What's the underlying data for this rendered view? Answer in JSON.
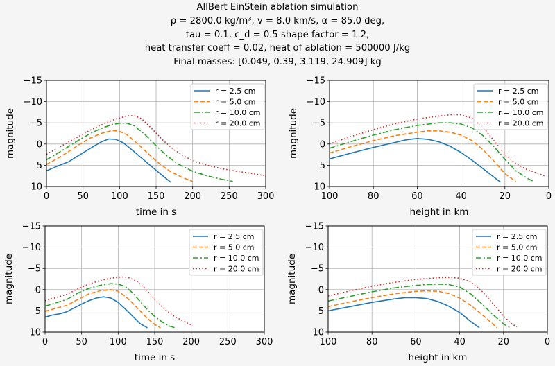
{
  "title": {
    "line1": "AllBert EinStein ablation simulation",
    "line2": "ρ = 2800.0 kg/m³, v = 8.0 km/s, α = 85.0 deg,",
    "line3": "tau = 0.1, c_d = 0.5 shape factor = 1.2,",
    "line4": "heat transfer coeff = 0.02, heat of ablation = 500000 J/kg",
    "line5": "Final masses: [0.049, 0.39, 3.119, 24.909] kg"
  },
  "series_style": [
    {
      "name": "r = 2.5 cm",
      "color": "#1f77b4",
      "dash": ""
    },
    {
      "name": "r = 5.0 cm",
      "color": "#ff7f0e",
      "dash": "6,3"
    },
    {
      "name": "r = 10.0 cm",
      "color": "#2ca02c",
      "dash": "8,3,2,3"
    },
    {
      "name": "r = 20.0 cm",
      "color": "#d62728",
      "dash": "1.5,3"
    }
  ],
  "chart_data": [
    {
      "type": "line",
      "xlabel": "time in s",
      "ylabel": "magnitude",
      "xlim": [
        0,
        300
      ],
      "ylim": [
        10,
        -15
      ],
      "xticks": [
        0,
        50,
        100,
        150,
        200,
        250,
        300
      ],
      "yticks": [
        10,
        5,
        0,
        -5,
        -10,
        -15
      ],
      "grid": true,
      "legend": "top-right",
      "series": [
        {
          "name": "r = 2.5 cm",
          "x": [
            0,
            15,
            30,
            45,
            60,
            75,
            85,
            95,
            105,
            120,
            135,
            150,
            160,
            170
          ],
          "y": [
            6.3,
            5.2,
            4.2,
            2.6,
            1.0,
            -0.5,
            -1.2,
            -1.1,
            -0.3,
            1.8,
            4.0,
            6.2,
            7.6,
            9.0
          ]
        },
        {
          "name": "r = 5.0 cm",
          "x": [
            0,
            15,
            30,
            45,
            60,
            75,
            90,
            100,
            110,
            125,
            140,
            155,
            170,
            185,
            200
          ],
          "y": [
            4.8,
            3.4,
            1.8,
            0.1,
            -1.4,
            -2.5,
            -3.2,
            -3.0,
            -2.2,
            0.0,
            2.4,
            4.7,
            6.5,
            7.8,
            8.8
          ]
        },
        {
          "name": "r = 10.0 cm",
          "x": [
            0,
            15,
            30,
            45,
            60,
            75,
            90,
            100,
            110,
            120,
            135,
            150,
            165,
            180,
            200,
            220,
            240,
            255
          ],
          "y": [
            3.7,
            2.2,
            0.6,
            -1.0,
            -2.5,
            -3.7,
            -4.6,
            -4.9,
            -4.9,
            -4.3,
            -2.2,
            0.4,
            2.8,
            4.7,
            6.4,
            7.5,
            8.3,
            8.8
          ]
        },
        {
          "name": "r = 20.0 cm",
          "x": [
            0,
            20,
            40,
            60,
            80,
            95,
            110,
            120,
            130,
            145,
            160,
            175,
            190,
            205,
            220,
            240,
            260,
            280,
            300
          ],
          "y": [
            2.4,
            0.5,
            -1.4,
            -3.3,
            -4.9,
            -5.9,
            -6.6,
            -6.7,
            -6.0,
            -3.5,
            -0.8,
            1.4,
            3.0,
            4.2,
            5.0,
            5.8,
            6.4,
            6.9,
            7.5
          ]
        }
      ]
    },
    {
      "type": "line",
      "xlabel": "height in km",
      "ylabel": "magnitude",
      "xlim": [
        100,
        0
      ],
      "ylim": [
        10,
        -15
      ],
      "xticks": [
        100,
        80,
        60,
        40,
        20,
        0
      ],
      "yticks": [
        10,
        5,
        0,
        -5,
        -10,
        -15
      ],
      "grid": true,
      "legend": "top-right",
      "series": [
        {
          "name": "r = 2.5 cm",
          "x": [
            100,
            90,
            80,
            70,
            65,
            60,
            55,
            50,
            45,
            40,
            35,
            30,
            25,
            22
          ],
          "y": [
            3.5,
            2.1,
            0.8,
            -0.4,
            -1.0,
            -1.3,
            -1.1,
            -0.5,
            0.5,
            2.0,
            3.8,
            5.8,
            7.8,
            9.0
          ]
        },
        {
          "name": "r = 5.0 cm",
          "x": [
            100,
            90,
            80,
            70,
            60,
            55,
            50,
            45,
            40,
            35,
            30,
            25,
            20,
            15
          ],
          "y": [
            2.1,
            0.6,
            -0.8,
            -2.0,
            -2.8,
            -3.1,
            -3.1,
            -2.8,
            -2.1,
            -0.8,
            1.3,
            4.0,
            7.0,
            8.8
          ]
        },
        {
          "name": "r = 10.0 cm",
          "x": [
            100,
            90,
            80,
            70,
            60,
            50,
            45,
            40,
            35,
            30,
            25,
            20,
            15,
            10,
            7
          ],
          "y": [
            1.0,
            -0.6,
            -2.1,
            -3.4,
            -4.4,
            -5.0,
            -5.0,
            -4.7,
            -3.8,
            -2.0,
            0.6,
            3.6,
            6.3,
            8.0,
            8.8
          ]
        },
        {
          "name": "r = 20.0 cm",
          "x": [
            100,
            90,
            80,
            70,
            60,
            50,
            45,
            40,
            35,
            30,
            25,
            20,
            15,
            10,
            5,
            2
          ],
          "y": [
            0.0,
            -1.8,
            -3.4,
            -4.8,
            -5.9,
            -6.6,
            -6.9,
            -6.9,
            -6.1,
            -4.0,
            -0.8,
            2.4,
            4.6,
            6.0,
            6.9,
            7.5
          ]
        }
      ]
    },
    {
      "type": "line",
      "xlabel": "time in s",
      "ylabel": "magnitude",
      "xlim": [
        0,
        300
      ],
      "ylim": [
        10,
        -15
      ],
      "xticks": [
        0,
        50,
        100,
        150,
        200,
        250,
        300
      ],
      "yticks": [
        10,
        5,
        0,
        -5,
        -10,
        -15
      ],
      "grid": true,
      "legend": "top-right",
      "series": [
        {
          "name": "r = 2.5 cm",
          "x": [
            0,
            10,
            20,
            30,
            40,
            50,
            60,
            70,
            80,
            90,
            100,
            110,
            120,
            130,
            140
          ],
          "y": [
            6.5,
            6.0,
            5.7,
            5.2,
            4.3,
            3.4,
            2.6,
            2.0,
            1.7,
            2.0,
            3.0,
            4.6,
            6.3,
            8.0,
            9.0
          ]
        },
        {
          "name": "r = 5.0 cm",
          "x": [
            0,
            15,
            30,
            45,
            60,
            75,
            90,
            100,
            110,
            120,
            130,
            140,
            150,
            158
          ],
          "y": [
            5.1,
            4.4,
            3.7,
            2.3,
            1.0,
            0.3,
            0.0,
            0.4,
            1.6,
            3.2,
            5.0,
            6.8,
            8.2,
            9.0
          ]
        },
        {
          "name": "r = 10.0 cm",
          "x": [
            0,
            15,
            30,
            45,
            60,
            75,
            90,
            100,
            110,
            120,
            130,
            140,
            150,
            160,
            170,
            178
          ],
          "y": [
            3.9,
            3.1,
            2.3,
            0.8,
            -0.3,
            -1.0,
            -1.4,
            -1.3,
            -0.7,
            0.8,
            2.8,
            4.7,
            6.3,
            7.6,
            8.6,
            9.0
          ]
        },
        {
          "name": "r = 20.0 cm",
          "x": [
            0,
            15,
            30,
            45,
            60,
            75,
            90,
            105,
            115,
            125,
            135,
            145,
            155,
            165,
            175,
            190,
            202
          ],
          "y": [
            2.6,
            1.9,
            1.1,
            -0.2,
            -1.3,
            -2.1,
            -2.7,
            -3.0,
            -2.8,
            -2.0,
            -0.6,
            1.3,
            3.2,
            4.8,
            6.1,
            7.5,
            8.5
          ]
        }
      ]
    },
    {
      "type": "line",
      "xlabel": "height in km",
      "ylabel": "magnitude",
      "xlim": [
        100,
        0
      ],
      "ylim": [
        10,
        -15
      ],
      "xticks": [
        100,
        80,
        60,
        40,
        20,
        0
      ],
      "yticks": [
        10,
        5,
        0,
        -5,
        -10,
        -15
      ],
      "grid": true,
      "legend": "top-right",
      "series": [
        {
          "name": "r = 2.5 cm",
          "x": [
            100,
            90,
            80,
            70,
            65,
            60,
            55,
            50,
            45,
            40,
            35,
            31
          ],
          "y": [
            5.0,
            4.0,
            3.0,
            2.2,
            1.9,
            1.9,
            2.1,
            2.8,
            3.9,
            5.4,
            7.5,
            9.0
          ]
        },
        {
          "name": "r = 5.0 cm",
          "x": [
            100,
            90,
            80,
            70,
            60,
            55,
            50,
            45,
            40,
            35,
            30,
            25,
            23
          ],
          "y": [
            4.0,
            2.9,
            1.9,
            1.0,
            0.4,
            0.3,
            0.4,
            0.9,
            2.0,
            3.7,
            5.8,
            8.0,
            9.0
          ]
        },
        {
          "name": "r = 10.0 cm",
          "x": [
            100,
            90,
            80,
            70,
            60,
            55,
            50,
            45,
            40,
            35,
            30,
            25,
            20,
            17
          ],
          "y": [
            2.7,
            1.6,
            0.5,
            -0.4,
            -1.0,
            -1.2,
            -1.3,
            -1.2,
            -0.6,
            1.0,
            3.3,
            5.8,
            8.1,
            9.0
          ]
        },
        {
          "name": "r = 20.0 cm",
          "x": [
            100,
            90,
            80,
            70,
            60,
            50,
            45,
            40,
            35,
            30,
            25,
            20,
            17,
            14
          ],
          "y": [
            1.5,
            0.3,
            -0.8,
            -1.7,
            -2.4,
            -2.8,
            -2.9,
            -2.7,
            -1.8,
            0.3,
            3.2,
            6.2,
            7.8,
            8.8
          ]
        }
      ]
    }
  ]
}
